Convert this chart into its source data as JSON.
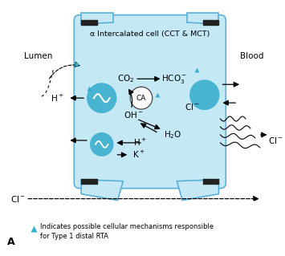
{
  "fig_width": 3.55,
  "fig_height": 3.19,
  "dpi": 100,
  "bg_color": "#ffffff",
  "cell_color": "#c5e8f5",
  "cell_edge_color": "#5ab0d8",
  "title": "α Intercalated cell (CCT & MCT)",
  "lumen_label": "Lumen",
  "blood_label": "Blood",
  "legend_line1": "Indicates possible cellular mechanisms responsible",
  "legend_line2": "for Type 1 distal RTA",
  "panel_label": "A",
  "triangle_color": "#3aafce",
  "circle_color": "#3aafce"
}
